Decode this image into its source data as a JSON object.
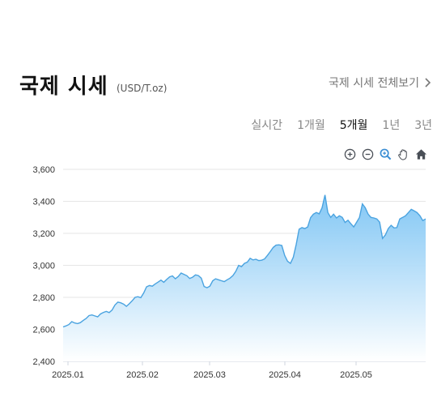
{
  "header": {
    "title": "국제 시세",
    "unit": "(USD/T.oz)",
    "view_all": "국제 시세 전체보기"
  },
  "tabs": [
    {
      "label": "실시간",
      "active": false
    },
    {
      "label": "1개월",
      "active": false
    },
    {
      "label": "5개월",
      "active": true
    },
    {
      "label": "1년",
      "active": false
    },
    {
      "label": "3년",
      "active": false
    }
  ],
  "tools": [
    "zoom-in-icon",
    "zoom-out-icon",
    "zoom-magnifier-icon",
    "pan-hand-icon",
    "home-icon"
  ],
  "colors": {
    "line": "#4aa3e0",
    "fill_top": "#7cc4f4",
    "fill_bottom": "#ffffff",
    "grid": "#e6e6e6"
  },
  "chart_data": {
    "type": "area",
    "title": "",
    "xlabel": "",
    "ylabel": "",
    "ylim": [
      2400,
      3600
    ],
    "yticks": [
      "2,400",
      "2,600",
      "2,800",
      "3,000",
      "3,200",
      "3,400",
      "3,600"
    ],
    "xticks": [
      "2025.01",
      "2025.02",
      "2025.03",
      "2025.04",
      "2025.05"
    ],
    "grid": true,
    "series": [
      {
        "values": [
          2615,
          2622,
          2630,
          2648,
          2640,
          2636,
          2642,
          2656,
          2668,
          2686,
          2690,
          2684,
          2678,
          2696,
          2706,
          2712,
          2705,
          2720,
          2752,
          2770,
          2766,
          2758,
          2744,
          2760,
          2778,
          2800,
          2804,
          2798,
          2828,
          2866,
          2874,
          2870,
          2884,
          2895,
          2908,
          2894,
          2912,
          2928,
          2934,
          2916,
          2930,
          2952,
          2944,
          2935,
          2918,
          2926,
          2940,
          2936,
          2920,
          2868,
          2860,
          2870,
          2904,
          2916,
          2910,
          2904,
          2898,
          2910,
          2920,
          2936,
          2962,
          3000,
          2992,
          3012,
          3020,
          3044,
          3034,
          3038,
          3030,
          3032,
          3040,
          3062,
          3086,
          3112,
          3126,
          3128,
          3124,
          3062,
          3026,
          3012,
          3050,
          3130,
          3226,
          3236,
          3230,
          3240,
          3298,
          3320,
          3330,
          3322,
          3360,
          3440,
          3330,
          3300,
          3320,
          3296,
          3310,
          3300,
          3268,
          3282,
          3260,
          3240,
          3270,
          3300,
          3384,
          3360,
          3320,
          3300,
          3296,
          3290,
          3270,
          3168,
          3190,
          3230,
          3250,
          3234,
          3236,
          3290,
          3300,
          3310,
          3330,
          3350,
          3340,
          3330,
          3310,
          3280,
          3290
        ]
      }
    ]
  }
}
